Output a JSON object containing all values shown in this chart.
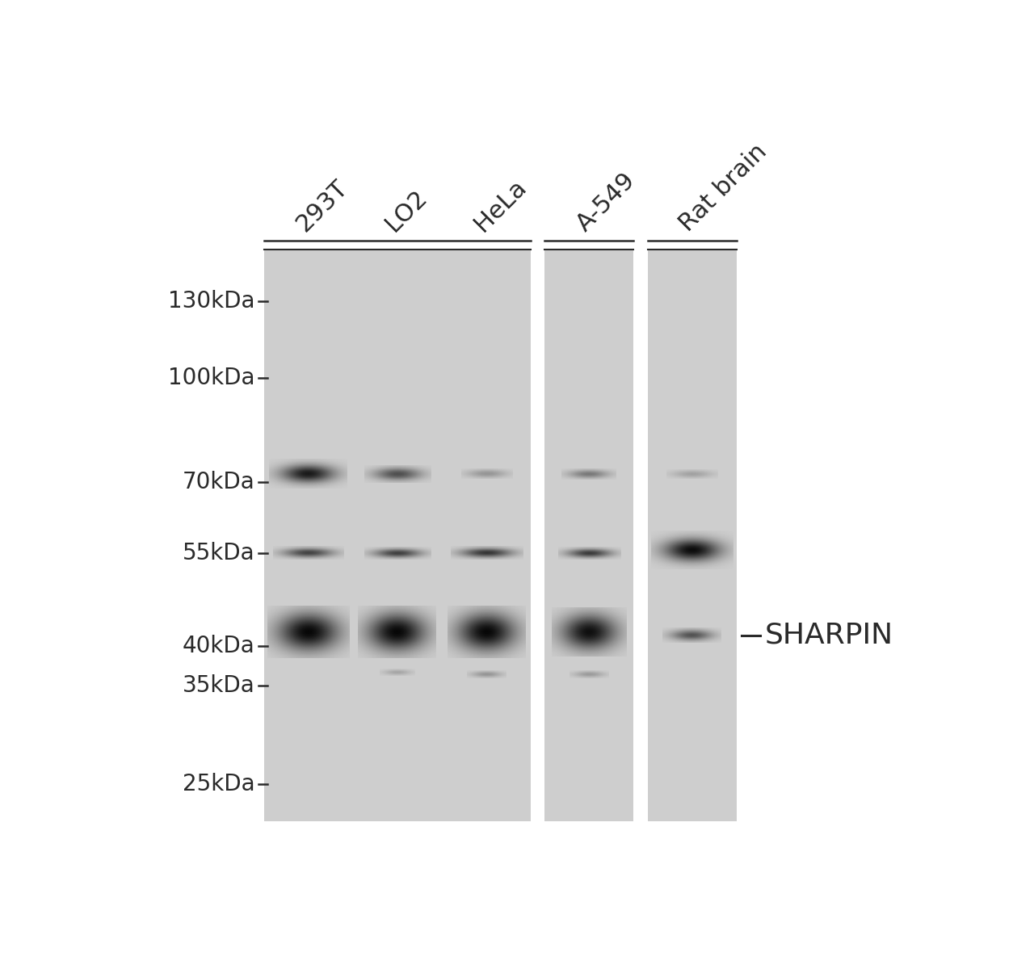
{
  "background_color": "#ffffff",
  "gel_bg_color": "#cecece",
  "lane_labels": [
    "293T",
    "LO2",
    "HeLa",
    "A-549",
    "Rat brain"
  ],
  "mw_markers": [
    "130kDa",
    "100kDa",
    "70kDa",
    "55kDa",
    "40kDa",
    "35kDa",
    "25kDa"
  ],
  "mw_values": [
    130,
    100,
    70,
    55,
    40,
    35,
    25
  ],
  "sharpin_label": "SHARPIN",
  "text_color": "#2a2a2a",
  "label_fontsize": 22,
  "mw_fontsize": 20
}
